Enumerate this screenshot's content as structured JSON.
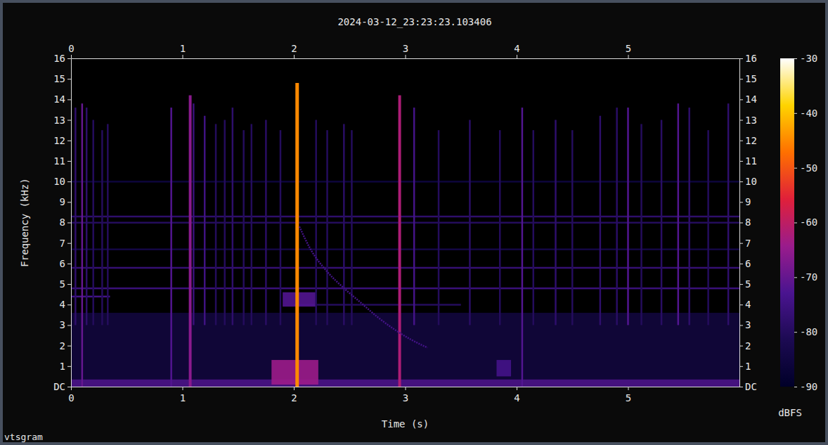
{
  "chart_data": {
    "type": "spectrogram",
    "title": "2024-03-12_23:23:23.103406",
    "x_label": "Time (s)",
    "y_label": "Frequency (kHz)",
    "footer": "vtsgram",
    "xlim": [
      0,
      6
    ],
    "xticks": [
      0,
      1,
      2,
      3,
      4,
      5
    ],
    "ylim": [
      0,
      16
    ],
    "yticks": [
      {
        "value": 0,
        "label": "DC"
      },
      1,
      2,
      3,
      4,
      5,
      6,
      7,
      8,
      9,
      10,
      11,
      12,
      13,
      14,
      15,
      16
    ],
    "colorbar": {
      "label": "dBFS",
      "range": [
        -90,
        -30
      ],
      "ticks": [
        -30,
        -40,
        -50,
        -60,
        -70,
        -80,
        -90
      ]
    },
    "noise": {
      "f_low": [
        0,
        0
      ],
      "f_high": [
        3.6,
        0.35
      ],
      "level": [
        -84,
        -72
      ]
    },
    "tones": {
      "f": [
        8.3,
        8.0,
        5.8,
        4.8,
        6.7,
        4.4,
        4.0,
        10.0
      ],
      "t_start": [
        0,
        0,
        0,
        0,
        0,
        0,
        2.0,
        0
      ],
      "t_end": [
        6,
        6,
        6,
        6,
        6,
        0.35,
        3.5,
        6
      ],
      "level": [
        -78,
        -80,
        -77,
        -76,
        -84,
        -74,
        -80,
        -86
      ]
    },
    "patches": {
      "t_start": [
        1.8,
        3.82,
        1.9
      ],
      "t_end": [
        2.22,
        3.95,
        2.2
      ],
      "f_low": [
        0.1,
        0.5,
        3.9
      ],
      "f_high": [
        1.3,
        1.3,
        4.6
      ],
      "level": [
        -64,
        -74,
        -72
      ]
    },
    "sferics": {
      "t": [
        0.04,
        0.1,
        0.14,
        0.2,
        0.28,
        0.33,
        0.9,
        1.07,
        1.1,
        1.2,
        1.3,
        1.38,
        1.45,
        1.55,
        1.62,
        1.75,
        1.88,
        2.03,
        2.2,
        2.3,
        2.45,
        2.52,
        2.95,
        3.08,
        3.3,
        3.58,
        3.85,
        4.05,
        4.15,
        4.35,
        4.5,
        4.75,
        4.9,
        5.0,
        5.12,
        5.3,
        5.45,
        5.55,
        5.72,
        5.9
      ],
      "f_low": [
        3,
        0,
        3,
        3,
        3,
        3,
        0,
        0,
        3,
        3,
        3,
        3,
        3,
        3,
        3,
        3,
        3,
        0,
        3,
        3,
        3,
        3,
        0,
        3,
        3,
        3,
        3,
        0,
        3,
        3,
        3,
        3,
        3,
        3,
        3,
        3,
        3,
        3,
        3,
        3
      ],
      "f_high": [
        13.6,
        13.8,
        13.6,
        13,
        12.5,
        12.8,
        13.6,
        14.2,
        13.8,
        13.2,
        12.8,
        13,
        13.6,
        12.5,
        12.8,
        13,
        12.5,
        14.8,
        13,
        12.5,
        12.8,
        12.5,
        14.2,
        13.6,
        12.5,
        13,
        12.5,
        13.6,
        12.5,
        13,
        12.5,
        13.2,
        13.6,
        13.6,
        12.8,
        13,
        13.8,
        13.6,
        12.5,
        13.8
      ],
      "level": [
        -78,
        -70,
        -78,
        -80,
        -80,
        -80,
        -72,
        -66,
        -76,
        -75,
        -80,
        -80,
        -78,
        -80,
        -80,
        -79,
        -80,
        -45,
        -80,
        -80,
        -79,
        -80,
        -62,
        -74,
        -80,
        -79,
        -80,
        -72,
        -80,
        -78,
        -80,
        -78,
        -79,
        -72,
        -80,
        -79,
        -72,
        -78,
        -80,
        -78
      ]
    },
    "whistler": {
      "x": [
        2.05,
        2.15,
        2.3,
        2.45,
        2.6,
        2.75,
        2.9,
        3.05,
        3.2
      ],
      "y": [
        7.8,
        6.7,
        5.6,
        4.8,
        4.1,
        3.4,
        2.8,
        2.3,
        1.9
      ],
      "level": -74
    }
  }
}
